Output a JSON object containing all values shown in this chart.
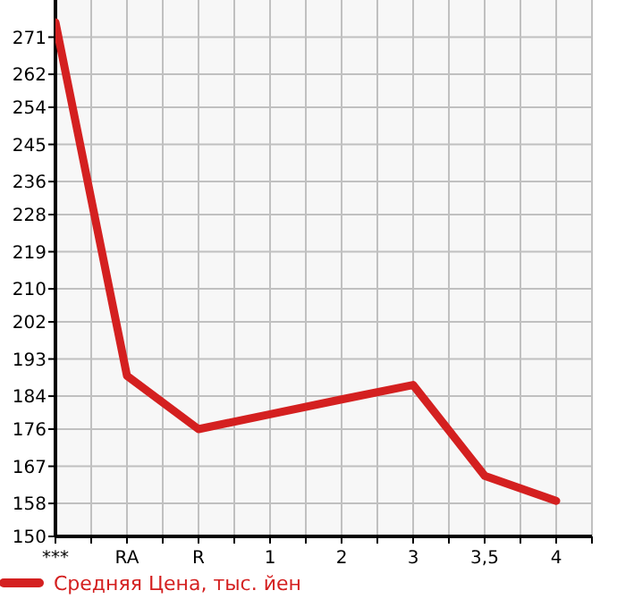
{
  "chart_data": {
    "type": "line",
    "categories": [
      "***",
      "RA",
      "R",
      "1",
      "2",
      "3",
      "3,5",
      "4"
    ],
    "series": [
      {
        "name": "Средняя Цена, тыс. йен",
        "color": "#d42020",
        "values": [
          274.6,
          188.9,
          176,
          179.6,
          183.2,
          186.7,
          164.7,
          158.6
        ]
      }
    ],
    "ylim": [
      150,
      280
    ],
    "yticks": [
      150,
      158,
      167,
      176,
      184,
      193,
      202,
      210,
      219,
      228,
      236,
      245,
      254,
      262,
      271
    ],
    "grid": true,
    "legend": "bottom",
    "marker": "none",
    "line_style": "solid"
  }
}
